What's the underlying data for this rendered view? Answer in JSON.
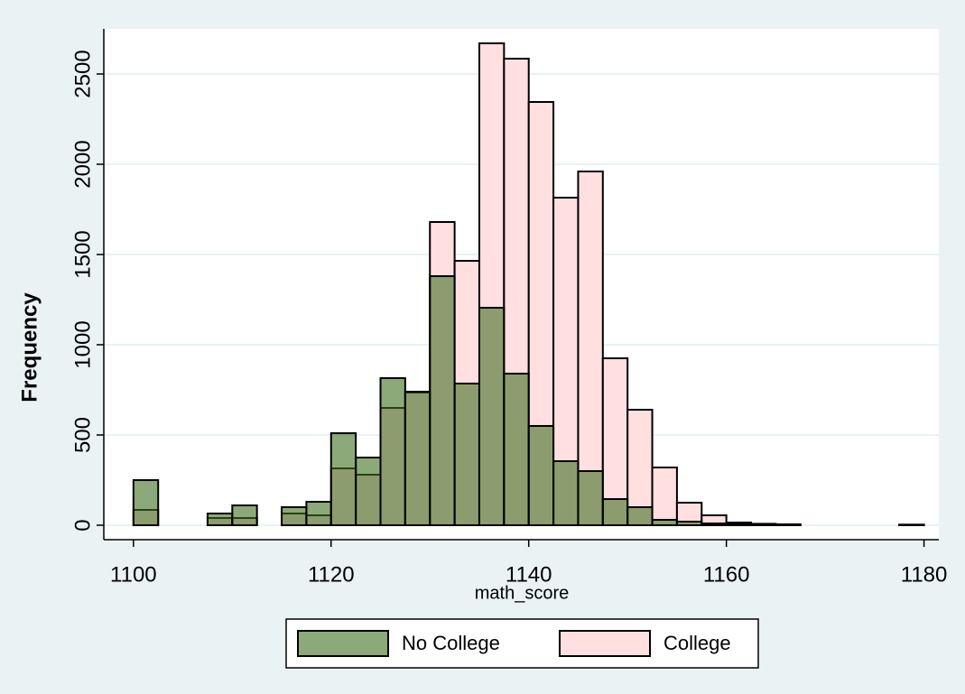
{
  "chart_data": {
    "type": "histogram",
    "x_label": "math_score",
    "y_label": "Frequency",
    "bins": [
      1100,
      1102.5,
      1105,
      1107.5,
      1110,
      1112.5,
      1115,
      1117.5,
      1120,
      1122.5,
      1125,
      1127.5,
      1130,
      1132.5,
      1135,
      1137.5,
      1140,
      1142.5,
      1145,
      1147.5,
      1150,
      1152.5,
      1155,
      1157.5,
      1160,
      1162.5,
      1165,
      1167.5,
      1170,
      1172.5,
      1175,
      1177.5,
      1180
    ],
    "series": [
      {
        "name": "College",
        "color": "#ffdfe0",
        "values": [
          85,
          0,
          0,
          40,
          40,
          0,
          65,
          55,
          315,
          280,
          650,
          735,
          1680,
          1465,
          2670,
          2585,
          2345,
          1815,
          1960,
          925,
          640,
          320,
          125,
          55,
          15,
          8,
          5,
          0,
          0,
          0,
          0,
          3
        ]
      },
      {
        "name": "No College",
        "color": "#3f7021",
        "values": [
          250,
          0,
          0,
          65,
          110,
          0,
          100,
          130,
          510,
          375,
          815,
          740,
          1380,
          785,
          1205,
          840,
          550,
          355,
          300,
          145,
          100,
          30,
          20,
          10,
          5,
          3,
          2,
          0,
          0,
          0,
          0,
          3
        ]
      }
    ],
    "legend_order": [
      "No College",
      "College"
    ],
    "xlim": [
      1097,
      1181.5
    ],
    "xticks": [
      1100,
      1120,
      1140,
      1160,
      1180
    ],
    "ylim": [
      -80,
      2750
    ],
    "yticks": [
      0,
      500,
      1000,
      1500,
      2000,
      2500
    ],
    "grid": true
  }
}
